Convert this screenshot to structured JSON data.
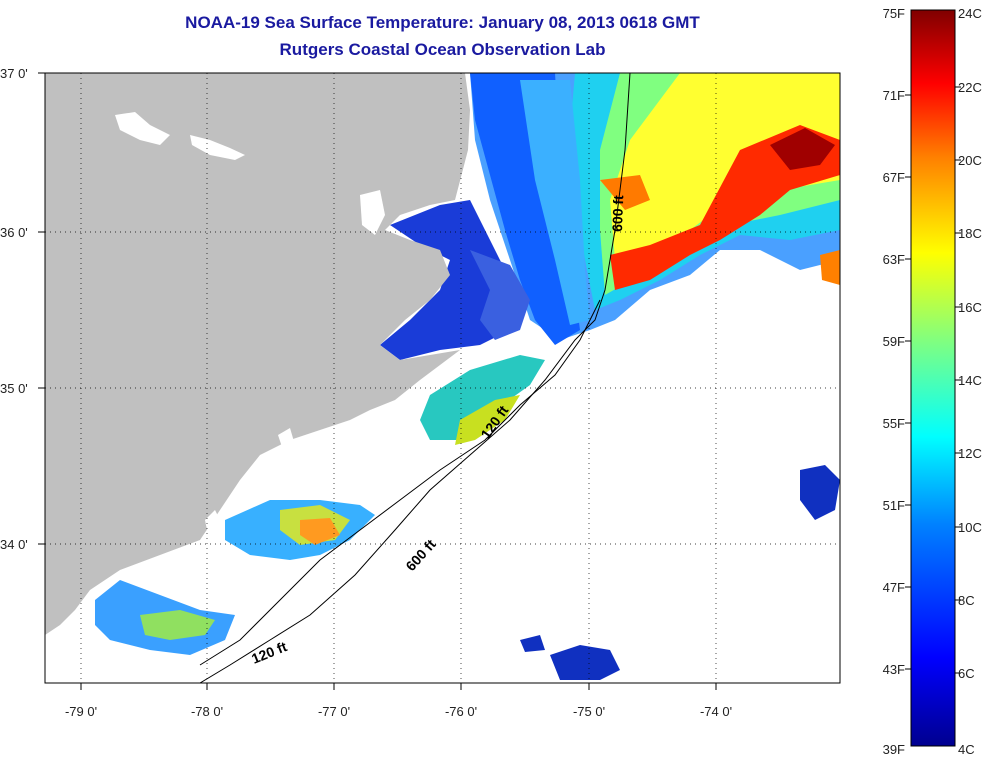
{
  "title": {
    "line1": "NOAA-19 Sea Surface Temperature:  January 08, 2013 0618 GMT",
    "line2": "Rutgers Coastal Ocean Observation Lab"
  },
  "axes": {
    "lon_labels": [
      "-79 0'",
      "-78 0'",
      "-77 0'",
      "-76 0'",
      "-75 0'",
      "-74 0'"
    ],
    "lat_labels": [
      "37 0'",
      "36 0'",
      "35 0'",
      "34 0'"
    ]
  },
  "contours": {
    "label_120_a": "120 ft",
    "label_120_b": "120 ft",
    "label_600_a": "600 ft",
    "label_600_b": "600 ft"
  },
  "colorbar": {
    "fahrenheit": [
      "75F",
      "71F",
      "67F",
      "63F",
      "59F",
      "55F",
      "51F",
      "47F",
      "43F",
      "39F"
    ],
    "celsius": [
      "24C",
      "22C",
      "20C",
      "18C",
      "16C",
      "14C",
      "12C",
      "10C",
      "8C",
      "6C",
      "4C"
    ],
    "colors": [
      "#00008f",
      "#0000ff",
      "#0080ff",
      "#00ffff",
      "#80ff80",
      "#ffff00",
      "#ff8000",
      "#ff0000",
      "#800000"
    ]
  },
  "colors": {
    "land": "#c0c0c0",
    "no_data": "#ffffff",
    "title": "#1a1aa0"
  }
}
